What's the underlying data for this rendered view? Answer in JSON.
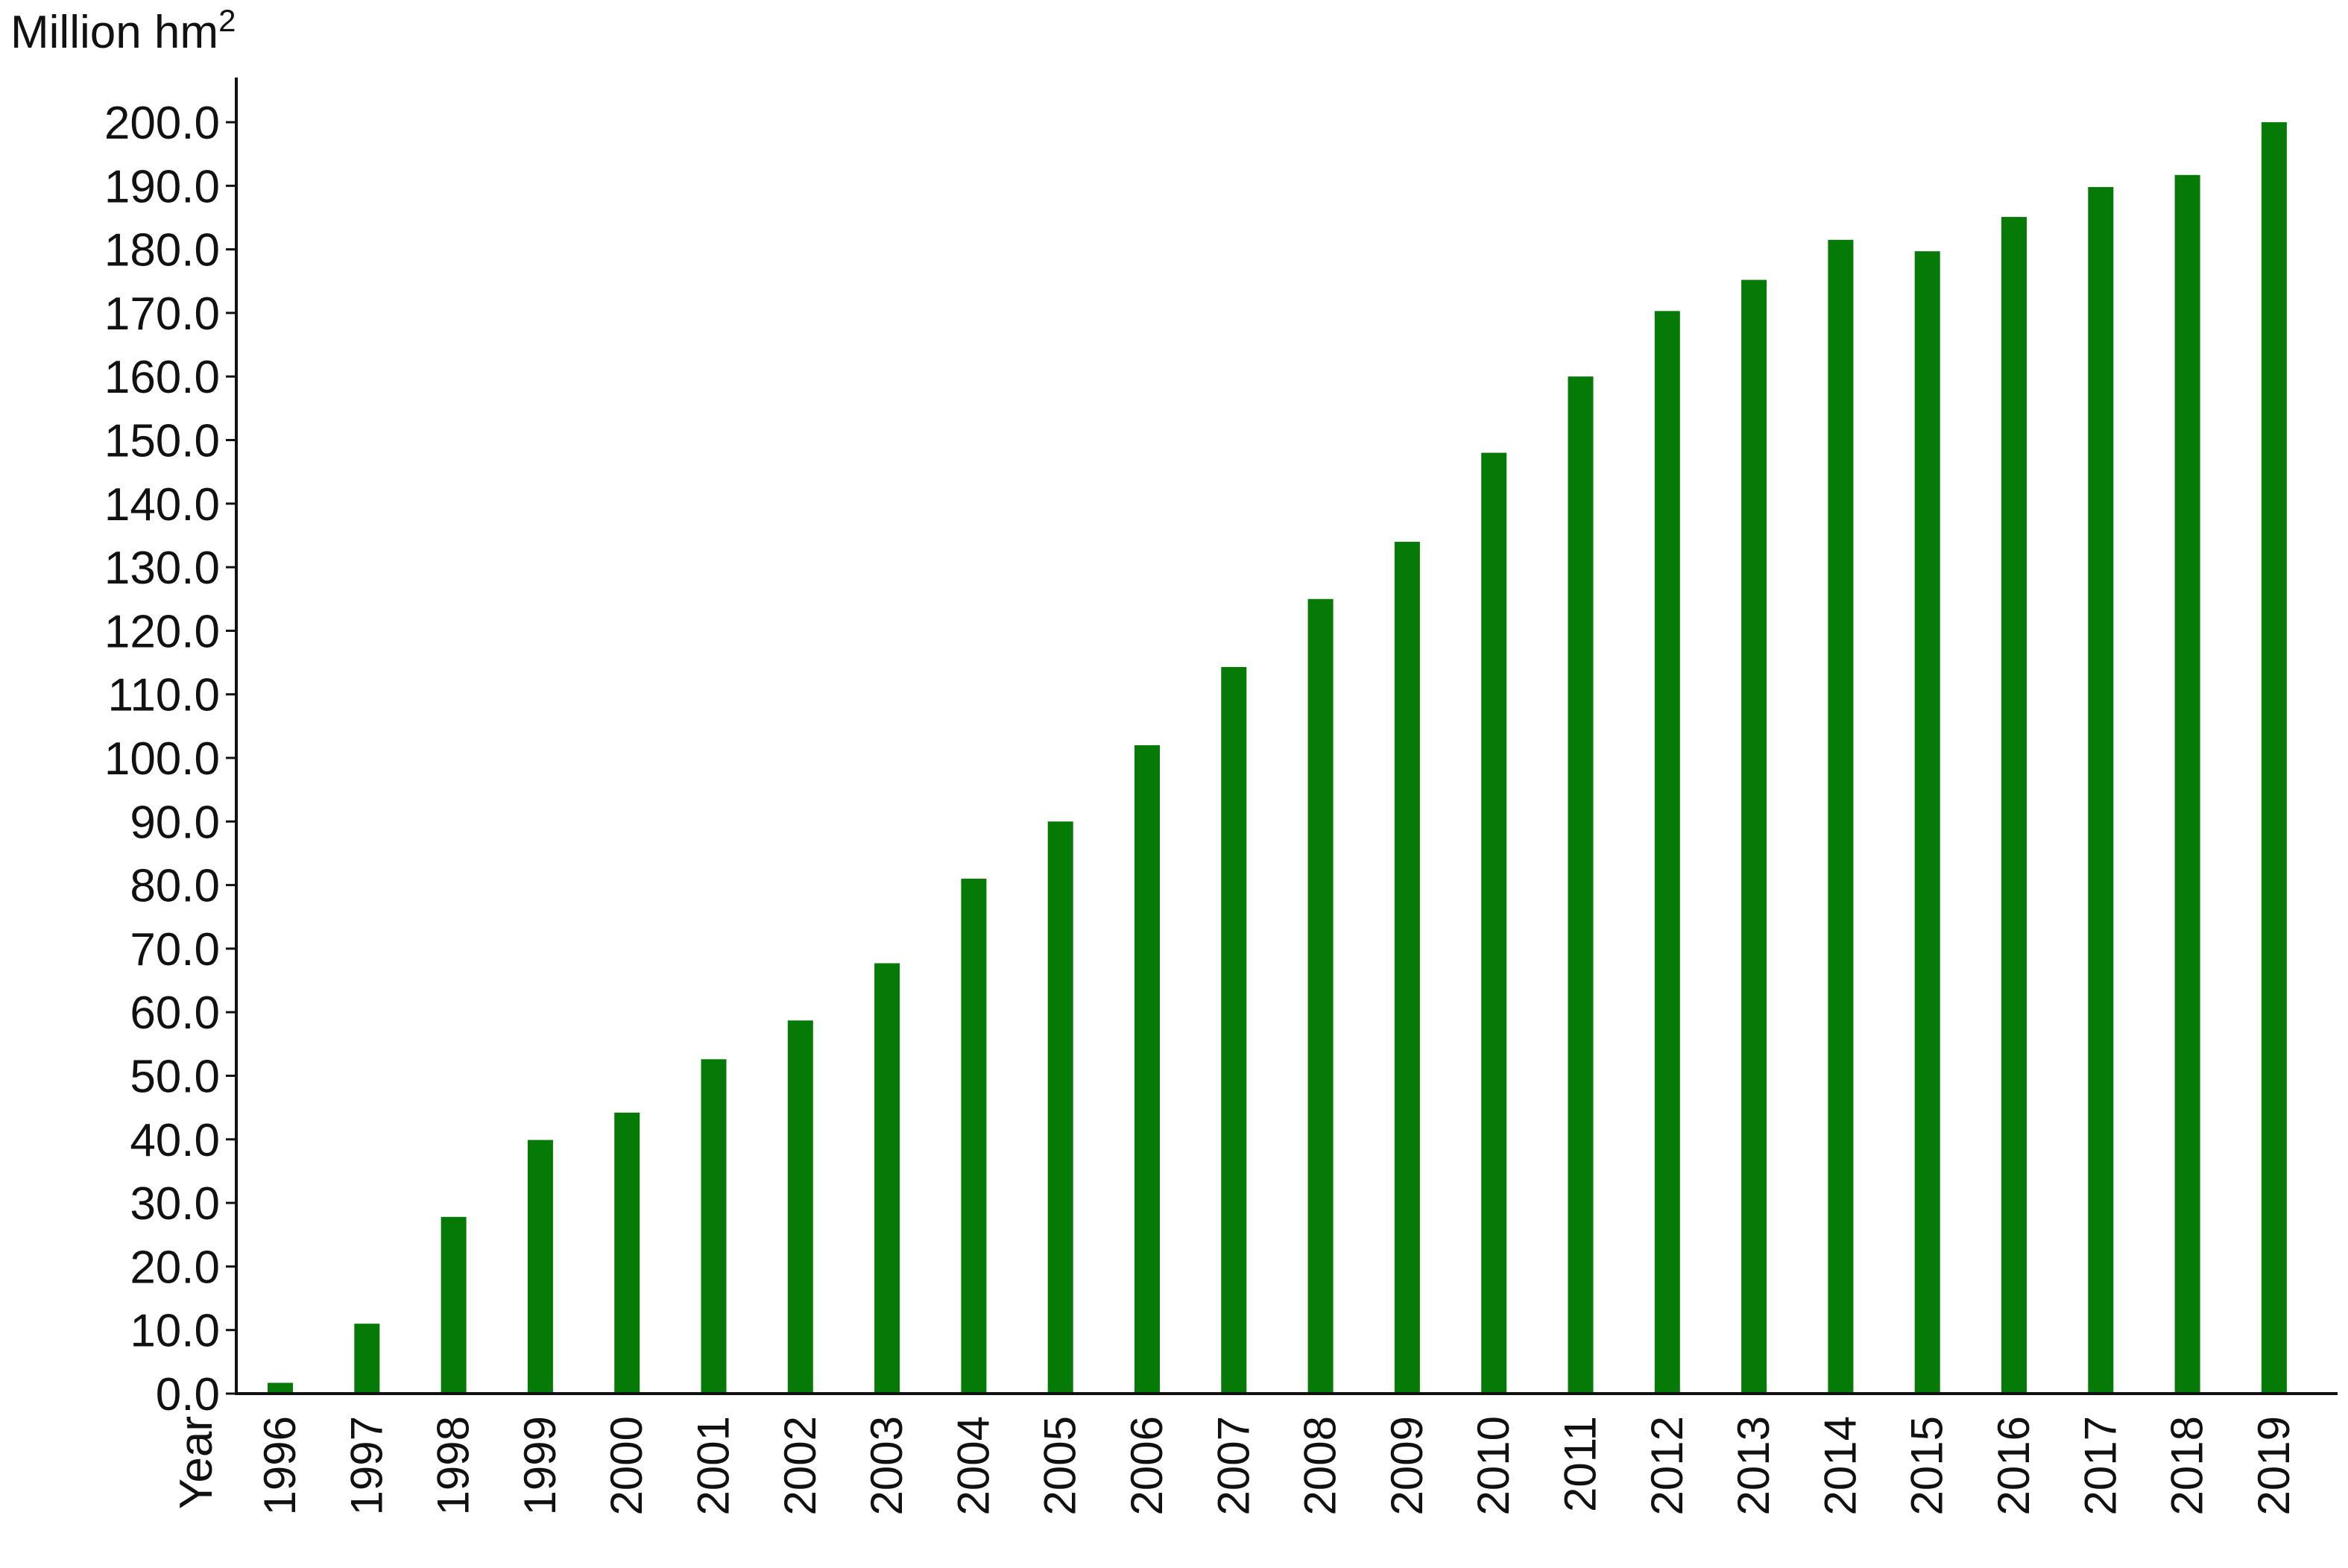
{
  "chart_data": {
    "type": "bar",
    "y_unit_label": "Million hm",
    "y_unit_superscript": "2",
    "x_axis_title": "Year",
    "categories": [
      "1996",
      "1997",
      "1998",
      "1999",
      "2000",
      "2001",
      "2002",
      "2003",
      "2004",
      "2005",
      "2006",
      "2007",
      "2008",
      "2009",
      "2010",
      "2011",
      "2012",
      "2013",
      "2014",
      "2015",
      "2016",
      "2017",
      "2018",
      "2019"
    ],
    "series": [
      {
        "values": [
          1.7,
          11.0,
          27.8,
          39.9,
          44.2,
          52.6,
          58.7,
          67.7,
          81.0,
          90.0,
          102.0,
          114.3,
          125.0,
          134.0,
          148.0,
          160.0,
          170.3,
          175.2,
          181.5,
          179.7,
          185.1,
          189.8,
          191.7,
          200.0
        ]
      }
    ],
    "yticks": [
      "0.0",
      "10.0",
      "20.0",
      "30.0",
      "40.0",
      "50.0",
      "60.0",
      "70.0",
      "80.0",
      "90.0",
      "100.0",
      "110.0",
      "120.0",
      "130.0",
      "140.0",
      "150.0",
      "160.0",
      "170.0",
      "180.0",
      "190.0",
      "200.0"
    ],
    "ylim": [
      0,
      200
    ],
    "bar_color": "#067a06",
    "grid": false,
    "legend": "none"
  }
}
